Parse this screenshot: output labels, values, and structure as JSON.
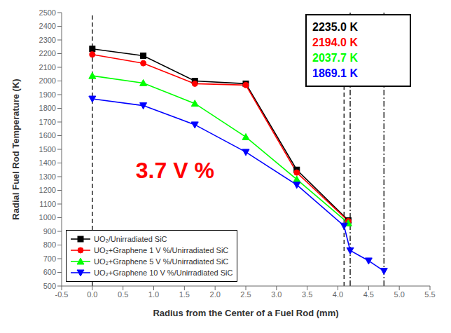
{
  "chart_data": {
    "type": "line",
    "title": "",
    "xlabel": "Radius from the Center of a Fuel Rod (mm)",
    "ylabel": "Radial Fuel Rod Temperature (K)",
    "xlim": [
      -0.5,
      5.5
    ],
    "ylim": [
      500,
      2500
    ],
    "xticks": [
      -0.5,
      {
        "value": 0,
        "label": "0.0"
      },
      0.5,
      {
        "value": 1,
        "label": "1.0"
      },
      1.5,
      {
        "value": 2,
        "label": "2.0"
      },
      2.5,
      {
        "value": 3,
        "label": "3.0"
      },
      3.5,
      {
        "value": 4,
        "label": "4.0"
      },
      4.5,
      {
        "value": 5,
        "label": "5.0"
      },
      5.5
    ],
    "yticks": [
      500,
      600,
      700,
      800,
      900,
      1000,
      1100,
      1200,
      1300,
      1400,
      1500,
      1600,
      1700,
      1800,
      1900,
      2000,
      2100,
      2200,
      2300,
      2400,
      2500
    ],
    "grid": false,
    "legend": "lower left",
    "vlines": [
      {
        "x": 0.0,
        "color": "black",
        "line_style": "dashed"
      },
      {
        "x": 4.1,
        "color": "black",
        "line_style": "dashed"
      },
      {
        "x": 4.2,
        "color": "black",
        "line_style": "dashdot"
      },
      {
        "x": 4.75,
        "color": "black",
        "line_style": "dashdot"
      }
    ],
    "annotations": [
      {
        "text": "3.7 V %",
        "x": 0.65,
        "y": 1350,
        "color": "red"
      }
    ],
    "text_box": [
      {
        "text": "2235.0 K",
        "color": "black"
      },
      {
        "text": "2194.0 K",
        "color": "red"
      },
      {
        "text": "2037.7 K",
        "color": "lime"
      },
      {
        "text": "1869.1 K",
        "color": "blue"
      }
    ],
    "series": [
      {
        "name": "UO₂/Unirradiated SiC",
        "color": "black",
        "marker": "square",
        "x": [
          0.0,
          0.83,
          1.67,
          2.5,
          3.33,
          4.17
        ],
        "values": [
          2235.0,
          2185.0,
          2000.0,
          1980.0,
          1350.0,
          980.0
        ]
      },
      {
        "name": "UO₂+Graphene 1 V %/Unirradiated SiC",
        "color": "red",
        "marker": "circle",
        "x": [
          0.0,
          0.83,
          1.67,
          2.5,
          3.33,
          4.17
        ],
        "values": [
          2194.0,
          2130.0,
          1980.0,
          1970.0,
          1330.0,
          975.0
        ]
      },
      {
        "name": "UO₂+Graphene 5 V %/Unirradiated SiC",
        "color": "lime",
        "marker": "triangle-up",
        "x": [
          0.0,
          0.83,
          1.67,
          2.5,
          3.33,
          4.17
        ],
        "values": [
          2037.7,
          1985.0,
          1835.0,
          1590.0,
          1280.0,
          960.0
        ]
      },
      {
        "name": "UO₂+Graphene 10 V %/Unirradiated SiC",
        "color": "blue",
        "marker": "triangle-down",
        "x": [
          0.0,
          0.83,
          1.67,
          2.5,
          3.33,
          4.1,
          4.2,
          4.5,
          4.75
        ],
        "values": [
          1869.1,
          1820.0,
          1680.0,
          1480.0,
          1240.0,
          940.0,
          760.0,
          685.0,
          610.0
        ]
      }
    ]
  }
}
